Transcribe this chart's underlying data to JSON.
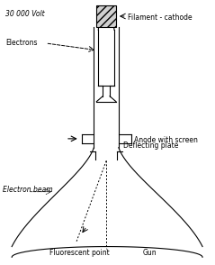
{
  "title": "",
  "bg_color": "#ffffff",
  "line_color": "#000000",
  "labels": {
    "filament_cathode": "Filament - cathode",
    "electrons": "Electrons",
    "anode_screen": "Anode with screen",
    "deflecting_plate": "Deflecting plate",
    "electron_beam": "Electron beam",
    "fluorescent_point": "Fluorescent point",
    "gun": "Gun",
    "voltage": "30 000 Volt"
  },
  "figsize": [
    2.39,
    2.94
  ],
  "dpi": 100
}
